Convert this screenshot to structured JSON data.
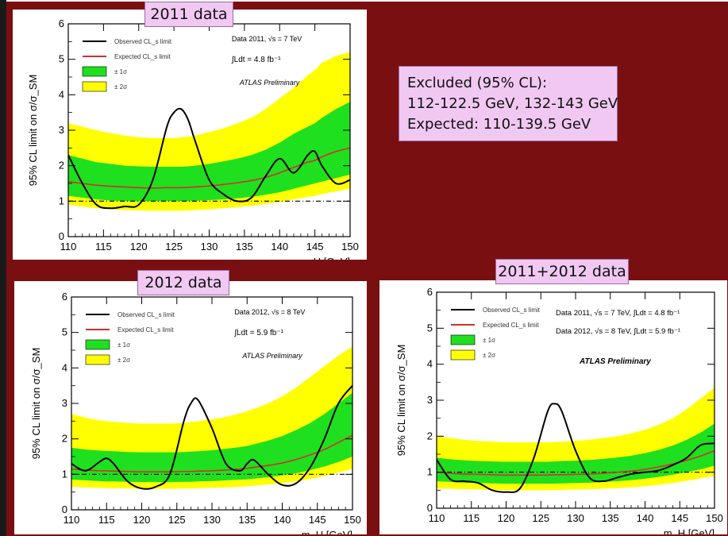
{
  "background_color": "#7a0f11",
  "colors": {
    "band2": "#ffff00",
    "band1": "#1fe01f",
    "expected": "#d03030",
    "observed": "#000000",
    "tag": "#f0c8f2"
  },
  "summary": {
    "line1": "Excluded (95% CL):",
    "line2": "112-122.5 GeV, 132-143 GeV",
    "line3": "Expected: 110-139.5 GeV"
  },
  "chart_data": [
    {
      "type": "line",
      "tag": "2011 data",
      "ylabel": "95% CL limit on σ/σ_SM",
      "xlabel": "m_H [GeV]",
      "xlim": [
        110,
        150
      ],
      "ylim": [
        0,
        6
      ],
      "xticks": [
        "110",
        "115",
        "120",
        "125",
        "130",
        "135",
        "140",
        "145",
        "150"
      ],
      "yticks": [
        "0",
        "1",
        "2",
        "3",
        "4",
        "5",
        "6"
      ],
      "legend": [
        "Observed CL_s limit",
        "Expected CL_s limit",
        "± 1σ",
        "± 2σ"
      ],
      "legend_position": "top-left",
      "annotations": [
        "Data 2011, √s = 7 TeV",
        "∫Ldt = 4.8 fb⁻¹",
        "ATLAS Preliminary"
      ],
      "x": [
        110,
        112,
        114,
        116,
        118,
        120,
        122,
        124,
        125,
        126,
        127,
        128,
        130,
        132,
        134,
        136,
        138,
        140,
        142,
        144,
        145,
        146,
        148,
        150
      ],
      "observed": [
        2.3,
        1.5,
        0.9,
        0.8,
        0.85,
        0.9,
        1.6,
        3.1,
        3.5,
        3.6,
        3.3,
        2.7,
        1.6,
        1.2,
        1.0,
        1.1,
        1.7,
        2.2,
        1.8,
        2.3,
        2.4,
        2.0,
        1.5,
        1.6
      ],
      "expected": [
        1.55,
        1.5,
        1.45,
        1.42,
        1.4,
        1.38,
        1.37,
        1.38,
        1.38,
        1.38,
        1.39,
        1.4,
        1.43,
        1.47,
        1.52,
        1.58,
        1.67,
        1.8,
        1.95,
        2.1,
        2.15,
        2.25,
        2.4,
        2.5
      ],
      "band1_low": [
        1.15,
        1.1,
        1.05,
        1.02,
        1.0,
        1.0,
        1.0,
        1.0,
        1.0,
        1.0,
        1.0,
        1.01,
        1.03,
        1.05,
        1.08,
        1.12,
        1.18,
        1.25,
        1.35,
        1.45,
        1.5,
        1.55,
        1.65,
        1.75
      ],
      "band1_high": [
        2.3,
        2.2,
        2.1,
        2.05,
        2.0,
        1.98,
        1.97,
        1.97,
        1.97,
        1.97,
        1.98,
        2.0,
        2.05,
        2.12,
        2.2,
        2.3,
        2.45,
        2.65,
        2.9,
        3.1,
        3.2,
        3.35,
        3.6,
        3.8
      ],
      "band2_low": [
        0.9,
        0.85,
        0.8,
        0.77,
        0.75,
        0.74,
        0.73,
        0.73,
        0.73,
        0.73,
        0.74,
        0.75,
        0.77,
        0.8,
        0.83,
        0.87,
        0.92,
        0.98,
        1.05,
        1.12,
        1.15,
        1.2,
        1.28,
        1.35
      ],
      "band2_high": [
        3.2,
        3.1,
        3.0,
        2.92,
        2.85,
        2.8,
        2.78,
        2.78,
        2.78,
        2.8,
        2.82,
        2.85,
        2.95,
        3.05,
        3.2,
        3.35,
        3.6,
        3.9,
        4.2,
        4.55,
        4.7,
        4.9,
        5.1,
        5.2
      ],
      "grid": false
    },
    {
      "type": "line",
      "tag": "2012 data",
      "ylabel": "95% CL limit on σ/σ_SM",
      "xlabel": "m_H [GeV]",
      "xlim": [
        110,
        150
      ],
      "ylim": [
        0,
        6
      ],
      "xticks": [
        "110",
        "115",
        "120",
        "125",
        "130",
        "135",
        "140",
        "145",
        "150"
      ],
      "yticks": [
        "0",
        "1",
        "2",
        "3",
        "4",
        "5",
        "6"
      ],
      "legend": [
        "Observed CL_s limit",
        "Expected CL_s limit",
        "± 1σ",
        "± 2σ"
      ],
      "legend_position": "top-left",
      "annotations": [
        "Data 2012, √s = 8 TeV",
        "∫Ldt = 5.9 fb⁻¹",
        "ATLAS Preliminary"
      ],
      "x": [
        110,
        112,
        114,
        115,
        116,
        118,
        120,
        122,
        124,
        126,
        127,
        128,
        130,
        132,
        134,
        135,
        136,
        138,
        140,
        142,
        144,
        146,
        148,
        150
      ],
      "observed": [
        1.3,
        1.1,
        1.35,
        1.45,
        1.3,
        0.8,
        0.6,
        0.65,
        1.0,
        2.5,
        3.0,
        3.1,
        2.3,
        1.3,
        1.1,
        1.3,
        1.4,
        1.0,
        0.7,
        0.75,
        1.2,
        2.0,
        3.0,
        3.5
      ],
      "expected": [
        1.15,
        1.12,
        1.1,
        1.1,
        1.09,
        1.08,
        1.07,
        1.07,
        1.07,
        1.08,
        1.08,
        1.09,
        1.1,
        1.12,
        1.15,
        1.17,
        1.2,
        1.25,
        1.32,
        1.42,
        1.55,
        1.7,
        1.9,
        2.1
      ],
      "band1_low": [
        0.85,
        0.83,
        0.81,
        0.8,
        0.8,
        0.79,
        0.78,
        0.78,
        0.78,
        0.79,
        0.79,
        0.8,
        0.81,
        0.83,
        0.85,
        0.86,
        0.88,
        0.92,
        0.97,
        1.03,
        1.12,
        1.22,
        1.35,
        1.5
      ],
      "band1_high": [
        1.75,
        1.7,
        1.67,
        1.66,
        1.65,
        1.63,
        1.62,
        1.62,
        1.62,
        1.63,
        1.64,
        1.65,
        1.68,
        1.72,
        1.77,
        1.8,
        1.85,
        1.95,
        2.08,
        2.25,
        2.45,
        2.7,
        3.0,
        3.3
      ],
      "band2_low": [
        0.65,
        0.63,
        0.62,
        0.61,
        0.61,
        0.6,
        0.59,
        0.59,
        0.59,
        0.6,
        0.6,
        0.61,
        0.62,
        0.63,
        0.65,
        0.66,
        0.68,
        0.71,
        0.75,
        0.8,
        0.87,
        0.95,
        1.05,
        1.15
      ],
      "band2_high": [
        2.7,
        2.6,
        2.52,
        2.5,
        2.48,
        2.45,
        2.43,
        2.43,
        2.43,
        2.45,
        2.47,
        2.5,
        2.55,
        2.62,
        2.72,
        2.78,
        2.85,
        3.0,
        3.2,
        3.45,
        3.75,
        4.05,
        4.35,
        4.6
      ],
      "grid": false
    },
    {
      "type": "line",
      "tag": "2011+2012 data",
      "ylabel": "95% CL limit on σ/σ_SM",
      "xlabel": "m_H [GeV]",
      "xlim": [
        110,
        150
      ],
      "ylim": [
        0,
        6
      ],
      "xticks": [
        "110",
        "115",
        "120",
        "125",
        "130",
        "135",
        "140",
        "145",
        "150"
      ],
      "yticks": [
        "0",
        "1",
        "2",
        "3",
        "4",
        "5",
        "6"
      ],
      "legend": [
        "Observed CL_s limit",
        "Expected CL_s limit",
        "± 1σ",
        "± 2σ"
      ],
      "legend_position": "top-left",
      "annotations": [
        "Data 2011, √s = 7 TeV, ∫Ldt = 4.8 fb⁻¹",
        "Data 2012, √s = 8 TeV, ∫Ldt = 5.9 fb⁻¹",
        "ATLAS Preliminary"
      ],
      "x": [
        110,
        112,
        114,
        116,
        118,
        120,
        122,
        124,
        126,
        127,
        128,
        130,
        132,
        134,
        136,
        138,
        140,
        142,
        144,
        146,
        148,
        150
      ],
      "observed": [
        1.35,
        0.8,
        0.75,
        0.7,
        0.5,
        0.45,
        0.55,
        1.4,
        2.7,
        2.9,
        2.7,
        1.6,
        0.85,
        0.75,
        0.85,
        0.95,
        1.0,
        1.05,
        1.2,
        1.4,
        1.75,
        1.8
      ],
      "expected": [
        1.0,
        0.97,
        0.95,
        0.94,
        0.93,
        0.92,
        0.92,
        0.92,
        0.92,
        0.93,
        0.93,
        0.94,
        0.95,
        0.97,
        1.0,
        1.03,
        1.08,
        1.15,
        1.23,
        1.33,
        1.45,
        1.6
      ],
      "band1_low": [
        0.75,
        0.73,
        0.71,
        0.7,
        0.69,
        0.68,
        0.68,
        0.68,
        0.68,
        0.68,
        0.69,
        0.7,
        0.71,
        0.73,
        0.75,
        0.78,
        0.82,
        0.87,
        0.93,
        1.0,
        1.08,
        1.18
      ],
      "band1_high": [
        1.4,
        1.36,
        1.33,
        1.31,
        1.3,
        1.29,
        1.29,
        1.29,
        1.29,
        1.3,
        1.31,
        1.32,
        1.34,
        1.37,
        1.41,
        1.46,
        1.53,
        1.62,
        1.74,
        1.9,
        2.1,
        2.35
      ],
      "band2_low": [
        0.55,
        0.54,
        0.53,
        0.52,
        0.51,
        0.5,
        0.5,
        0.5,
        0.5,
        0.5,
        0.51,
        0.52,
        0.53,
        0.54,
        0.56,
        0.58,
        0.61,
        0.65,
        0.7,
        0.76,
        0.83,
        0.9
      ],
      "band2_high": [
        2.0,
        1.95,
        1.9,
        1.87,
        1.85,
        1.83,
        1.83,
        1.83,
        1.83,
        1.84,
        1.85,
        1.87,
        1.9,
        1.95,
        2.0,
        2.08,
        2.18,
        2.32,
        2.5,
        2.75,
        3.05,
        3.35
      ],
      "grid": false
    }
  ]
}
